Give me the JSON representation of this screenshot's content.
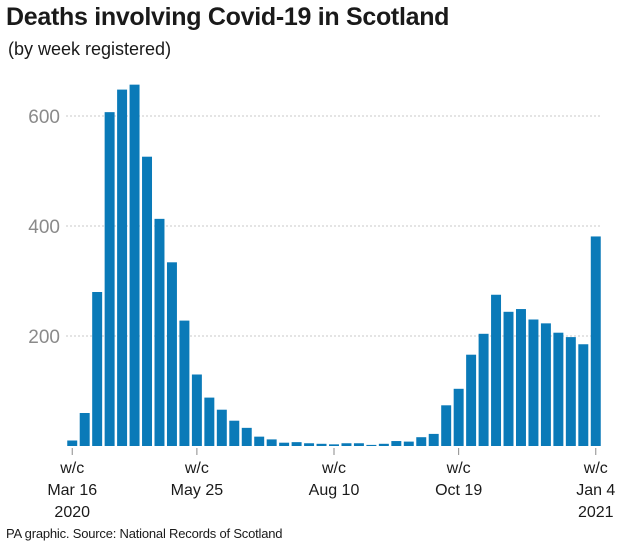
{
  "title": "Deaths involving Covid-19 in Scotland",
  "subtitle": "(by week registered)",
  "source": "PA graphic. Source: National Records of Scotland",
  "colors": {
    "bar": "#0a7ab8",
    "grid": "#c8c8c8",
    "axis": "#8a8a8a"
  },
  "chart_data": {
    "type": "bar",
    "title": "Deaths involving Covid-19 in Scotland",
    "subtitle": "(by week registered)",
    "xlabel": "",
    "ylabel": "",
    "ylim": [
      0,
      660
    ],
    "yticks": [
      200,
      400,
      600
    ],
    "grid": true,
    "x_tick_labels": [
      {
        "index": 0,
        "lines": [
          "w/c",
          "Mar 16",
          "2020"
        ]
      },
      {
        "index": 10,
        "lines": [
          "w/c",
          "May 25"
        ]
      },
      {
        "index": 21,
        "lines": [
          "w/c",
          "Aug 10"
        ]
      },
      {
        "index": 31,
        "lines": [
          "w/c",
          "Oct 19"
        ]
      },
      {
        "index": 42,
        "lines": [
          "w/c",
          "Jan 4",
          "2021"
        ]
      }
    ],
    "values": [
      10,
      60,
      280,
      607,
      648,
      657,
      526,
      413,
      334,
      228,
      130,
      88,
      66,
      46,
      33,
      17,
      12,
      6,
      7,
      5,
      4,
      3,
      5,
      5,
      2,
      4,
      9,
      8,
      16,
      22,
      74,
      104,
      166,
      204,
      275,
      244,
      249,
      230,
      223,
      206,
      198,
      185,
      381
    ]
  }
}
